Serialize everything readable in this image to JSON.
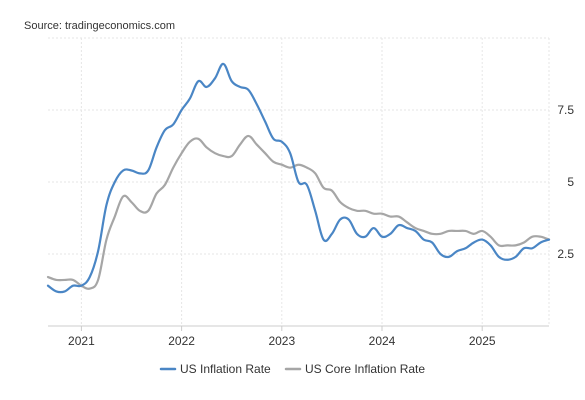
{
  "source": "Source: tradingeconomics.com",
  "chart_data": {
    "type": "line",
    "title": "",
    "xlabel": "",
    "ylabel": "",
    "x_tick_labels": [
      "2021",
      "2022",
      "2023",
      "2024",
      "2025"
    ],
    "y_tick_labels": [
      "2.5",
      "5",
      "7.5"
    ],
    "xlim": [
      "2020-09",
      "2025-09"
    ],
    "ylim": [
      0,
      10
    ],
    "grid": "on",
    "legend_position": "bottom",
    "series": [
      {
        "name": "US Inflation Rate",
        "color": "#4a86c5",
        "points": [
          [
            "2020-09",
            1.4
          ],
          [
            "2020-10",
            1.2
          ],
          [
            "2020-11",
            1.2
          ],
          [
            "2020-12",
            1.4
          ],
          [
            "2021-01",
            1.4
          ],
          [
            "2021-02",
            1.7
          ],
          [
            "2021-03",
            2.6
          ],
          [
            "2021-04",
            4.2
          ],
          [
            "2021-05",
            5.0
          ],
          [
            "2021-06",
            5.4
          ],
          [
            "2021-07",
            5.4
          ],
          [
            "2021-08",
            5.3
          ],
          [
            "2021-09",
            5.4
          ],
          [
            "2021-10",
            6.2
          ],
          [
            "2021-11",
            6.8
          ],
          [
            "2021-12",
            7.0
          ],
          [
            "2022-01",
            7.5
          ],
          [
            "2022-02",
            7.9
          ],
          [
            "2022-03",
            8.5
          ],
          [
            "2022-04",
            8.3
          ],
          [
            "2022-05",
            8.6
          ],
          [
            "2022-06",
            9.1
          ],
          [
            "2022-07",
            8.5
          ],
          [
            "2022-08",
            8.3
          ],
          [
            "2022-09",
            8.2
          ],
          [
            "2022-10",
            7.7
          ],
          [
            "2022-11",
            7.1
          ],
          [
            "2022-12",
            6.5
          ],
          [
            "2023-01",
            6.4
          ],
          [
            "2023-02",
            6.0
          ],
          [
            "2023-03",
            5.0
          ],
          [
            "2023-04",
            4.9
          ],
          [
            "2023-05",
            4.0
          ],
          [
            "2023-06",
            3.0
          ],
          [
            "2023-07",
            3.2
          ],
          [
            "2023-08",
            3.7
          ],
          [
            "2023-09",
            3.7
          ],
          [
            "2023-10",
            3.2
          ],
          [
            "2023-11",
            3.1
          ],
          [
            "2023-12",
            3.4
          ],
          [
            "2024-01",
            3.1
          ],
          [
            "2024-02",
            3.2
          ],
          [
            "2024-03",
            3.5
          ],
          [
            "2024-04",
            3.4
          ],
          [
            "2024-05",
            3.3
          ],
          [
            "2024-06",
            3.0
          ],
          [
            "2024-07",
            2.9
          ],
          [
            "2024-08",
            2.5
          ],
          [
            "2024-09",
            2.4
          ],
          [
            "2024-10",
            2.6
          ],
          [
            "2024-11",
            2.7
          ],
          [
            "2024-12",
            2.9
          ],
          [
            "2025-01",
            3.0
          ],
          [
            "2025-02",
            2.8
          ],
          [
            "2025-03",
            2.4
          ],
          [
            "2025-04",
            2.3
          ],
          [
            "2025-05",
            2.4
          ],
          [
            "2025-06",
            2.7
          ],
          [
            "2025-07",
            2.7
          ],
          [
            "2025-08",
            2.9
          ],
          [
            "2025-09",
            3.0
          ]
        ]
      },
      {
        "name": "US Core Inflation Rate",
        "color": "#a6a6a6",
        "points": [
          [
            "2020-09",
            1.7
          ],
          [
            "2020-10",
            1.6
          ],
          [
            "2020-11",
            1.6
          ],
          [
            "2020-12",
            1.6
          ],
          [
            "2021-01",
            1.4
          ],
          [
            "2021-02",
            1.3
          ],
          [
            "2021-03",
            1.6
          ],
          [
            "2021-04",
            3.0
          ],
          [
            "2021-05",
            3.8
          ],
          [
            "2021-06",
            4.5
          ],
          [
            "2021-07",
            4.3
          ],
          [
            "2021-08",
            4.0
          ],
          [
            "2021-09",
            4.0
          ],
          [
            "2021-10",
            4.6
          ],
          [
            "2021-11",
            4.9
          ],
          [
            "2021-12",
            5.5
          ],
          [
            "2022-01",
            6.0
          ],
          [
            "2022-02",
            6.4
          ],
          [
            "2022-03",
            6.5
          ],
          [
            "2022-04",
            6.2
          ],
          [
            "2022-05",
            6.0
          ],
          [
            "2022-06",
            5.9
          ],
          [
            "2022-07",
            5.9
          ],
          [
            "2022-08",
            6.3
          ],
          [
            "2022-09",
            6.6
          ],
          [
            "2022-10",
            6.3
          ],
          [
            "2022-11",
            6.0
          ],
          [
            "2022-12",
            5.7
          ],
          [
            "2023-01",
            5.6
          ],
          [
            "2023-02",
            5.5
          ],
          [
            "2023-03",
            5.6
          ],
          [
            "2023-04",
            5.5
          ],
          [
            "2023-05",
            5.3
          ],
          [
            "2023-06",
            4.8
          ],
          [
            "2023-07",
            4.7
          ],
          [
            "2023-08",
            4.3
          ],
          [
            "2023-09",
            4.1
          ],
          [
            "2023-10",
            4.0
          ],
          [
            "2023-11",
            4.0
          ],
          [
            "2023-12",
            3.9
          ],
          [
            "2024-01",
            3.9
          ],
          [
            "2024-02",
            3.8
          ],
          [
            "2024-03",
            3.8
          ],
          [
            "2024-04",
            3.6
          ],
          [
            "2024-05",
            3.4
          ],
          [
            "2024-06",
            3.3
          ],
          [
            "2024-07",
            3.2
          ],
          [
            "2024-08",
            3.2
          ],
          [
            "2024-09",
            3.3
          ],
          [
            "2024-10",
            3.3
          ],
          [
            "2024-11",
            3.3
          ],
          [
            "2024-12",
            3.2
          ],
          [
            "2025-01",
            3.3
          ],
          [
            "2025-02",
            3.1
          ],
          [
            "2025-03",
            2.8
          ],
          [
            "2025-04",
            2.8
          ],
          [
            "2025-05",
            2.8
          ],
          [
            "2025-06",
            2.9
          ],
          [
            "2025-07",
            3.1
          ],
          [
            "2025-08",
            3.1
          ],
          [
            "2025-09",
            3.0
          ]
        ]
      }
    ]
  }
}
